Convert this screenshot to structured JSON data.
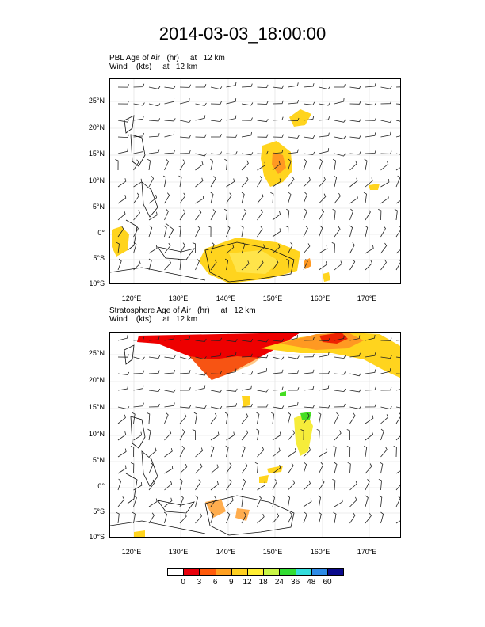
{
  "title": "2014-03-03_18:00:00",
  "panels": [
    {
      "name": "pbl",
      "line1": "PBL Age of Air   (hr)     at   12 km",
      "line2": "Wind    (kts)     at   12 km"
    },
    {
      "name": "strat",
      "line1": "Stratosphere Age of Air   (hr)     at   12 km",
      "line2": "Wind    (kts)     at   12 km"
    }
  ],
  "axes": {
    "lat_labels": [
      "25°N",
      "20°N",
      "15°N",
      "10°N",
      "5°N",
      "0°",
      "5°S",
      "10°S"
    ],
    "lon_labels": [
      "120°E",
      "130°E",
      "140°E",
      "150°E",
      "160°E",
      "170°E"
    ]
  },
  "legend": {
    "labels": [
      "0",
      "3",
      "6",
      "9",
      "12",
      "18",
      "24",
      "36",
      "48",
      "60"
    ],
    "colors": [
      "#ffffff",
      "#e8000b",
      "#ff5a0a",
      "#ffa020",
      "#ffcf20",
      "#ffee33",
      "#c8f545",
      "#33dd33",
      "#33dddd",
      "#2d8be6",
      "#0a0a8c"
    ]
  },
  "colors": {
    "red": "#ee0000",
    "orange": "#ff9922",
    "yellow": "#ffd41e",
    "lightyellow": "#f6ec3a",
    "green": "#44dd22"
  }
}
